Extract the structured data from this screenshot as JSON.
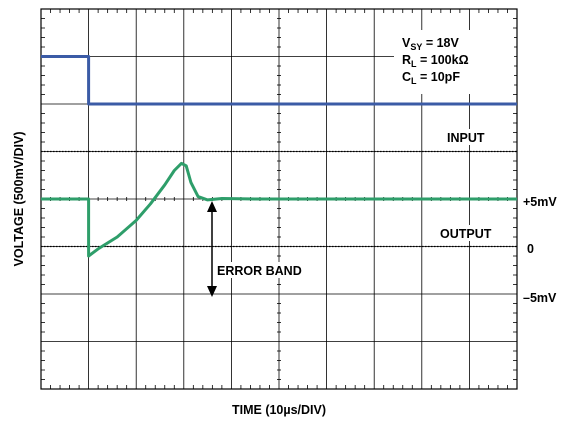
{
  "chart_data": {
    "type": "line",
    "xlabel": "TIME (10µs/DIV)",
    "ylabel": "VOLTAGE (500mV/DIV)",
    "x_divisions": 10,
    "y_divisions": 8,
    "grid": true,
    "conditions": [
      {
        "main": "V",
        "sub": "SY",
        "rest": " = 18V"
      },
      {
        "main": "R",
        "sub": "L",
        "rest": " = 100kΩ"
      },
      {
        "main": "C",
        "sub": "L",
        "rest": " = 10pF"
      }
    ],
    "band_labels": {
      "upper": "+5mV",
      "zero": "0",
      "lower": "–5mV"
    },
    "band_levels_div": {
      "upper": 5.0,
      "zero": 4.0,
      "lower": 3.0
    },
    "annotation": "ERROR BAND",
    "series": [
      {
        "name": "INPUT",
        "color": "#3b5ba6",
        "x": [
          0,
          1.0,
          1.0,
          10
        ],
        "y": [
          7.0,
          7.0,
          6.0,
          6.0
        ]
      },
      {
        "name": "OUTPUT",
        "color": "#2e9e6a",
        "x": [
          0,
          1.0,
          1.0,
          1.2,
          1.6,
          2.0,
          2.3,
          2.6,
          2.8,
          2.95,
          3.05,
          3.15,
          3.3,
          3.5,
          3.8,
          4.5,
          10
        ],
        "y": [
          4.0,
          4.0,
          2.8,
          2.95,
          3.2,
          3.55,
          3.9,
          4.3,
          4.6,
          4.75,
          4.7,
          4.35,
          4.05,
          3.98,
          4.01,
          4.0,
          4.0
        ]
      }
    ]
  }
}
